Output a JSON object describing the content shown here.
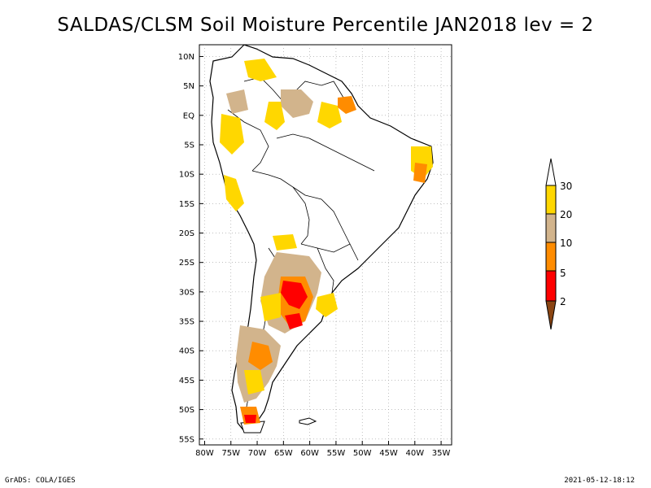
{
  "title": "SALDAS/CLSM Soil Moisture Percentile JAN2018 lev = 2",
  "footer": {
    "left": "GrADS: COLA/IGES",
    "right": "2021-05-12-18:12"
  },
  "map": {
    "lon_range": [
      -81,
      -33
    ],
    "lat_range": [
      -56,
      12
    ],
    "x_ticks": [
      {
        "value": -80,
        "label": "80W"
      },
      {
        "value": -75,
        "label": "75W"
      },
      {
        "value": -70,
        "label": "70W"
      },
      {
        "value": -65,
        "label": "65W"
      },
      {
        "value": -60,
        "label": "60W"
      },
      {
        "value": -55,
        "label": "55W"
      },
      {
        "value": -50,
        "label": "50W"
      },
      {
        "value": -45,
        "label": "45W"
      },
      {
        "value": -40,
        "label": "40W"
      },
      {
        "value": -35,
        "label": "35W"
      }
    ],
    "y_ticks": [
      {
        "value": 10,
        "label": "10N"
      },
      {
        "value": 5,
        "label": "5N"
      },
      {
        "value": 0,
        "label": "EQ"
      },
      {
        "value": -5,
        "label": "5S"
      },
      {
        "value": -10,
        "label": "10S"
      },
      {
        "value": -15,
        "label": "15S"
      },
      {
        "value": -20,
        "label": "20S"
      },
      {
        "value": -25,
        "label": "25S"
      },
      {
        "value": -30,
        "label": "30S"
      },
      {
        "value": -35,
        "label": "35S"
      },
      {
        "value": -40,
        "label": "40S"
      },
      {
        "value": -45,
        "label": "45S"
      },
      {
        "value": -50,
        "label": "50S"
      },
      {
        "value": -55,
        "label": "55S"
      }
    ]
  },
  "legend": {
    "levels": [
      "30",
      "20",
      "10",
      "5",
      "2"
    ],
    "colors": {
      "above_30": "#ffffff",
      "20_30": "#ffd700",
      "10_20": "#d2b48c",
      "5_10": "#ff8c00",
      "2_5": "#ff0000",
      "below_2": "#8b4513"
    }
  }
}
